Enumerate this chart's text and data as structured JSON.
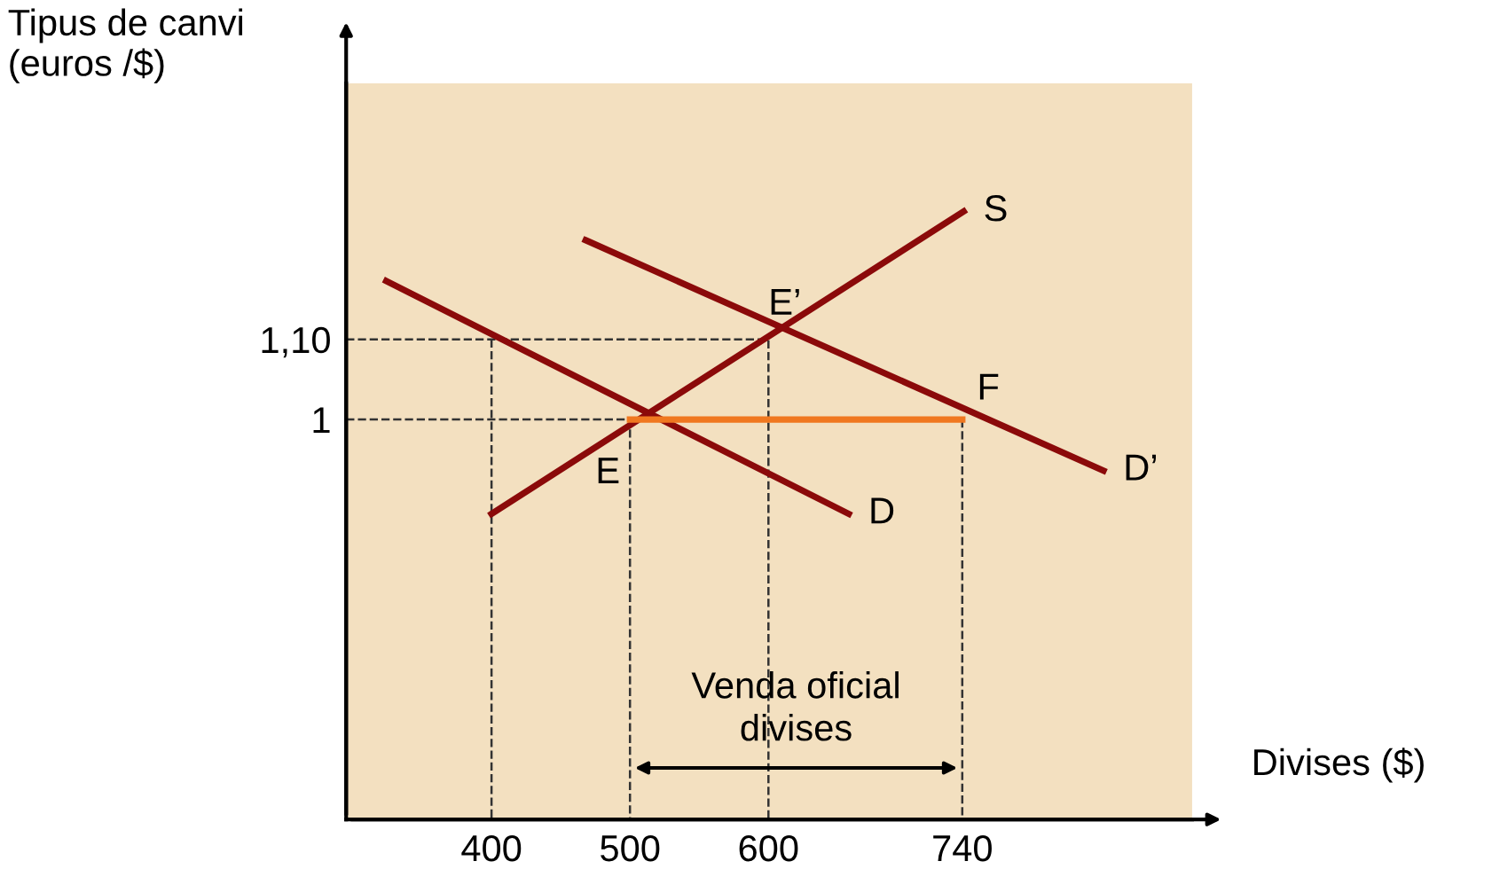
{
  "chart_data": {
    "type": "line",
    "xlabel": "Divises ($)",
    "ylabel": "Tipus de canvi\n(euros /$)",
    "xlim": [
      295,
      906
    ],
    "ylim": [
      0.5,
      1.42
    ],
    "xticks": [
      400,
      500,
      600,
      740
    ],
    "yticks": [
      1,
      {
        "value": 1.1,
        "label": "1,10"
      }
    ],
    "grid": false,
    "marker": "none",
    "series": [
      {
        "name": "S",
        "color": "#8b0a0a",
        "x": [
          400,
          741
        ],
        "values": [
          0.882,
          1.26
        ]
      },
      {
        "name": "D",
        "color": "#8b0a0a",
        "x": [
          324,
          658
        ],
        "values": [
          1.173,
          0.882
        ]
      },
      {
        "name": "D’",
        "color": "#8b0a0a",
        "x": [
          468,
          842
        ],
        "values": [
          1.224,
          0.936
        ]
      },
      {
        "color": "#f07820",
        "x": [
          500,
          740
        ],
        "values": [
          1,
          1
        ]
      },
      {
        "color": "#333333",
        "line_style": "dashed",
        "x": [
          295,
          600,
          600,
          600
        ],
        "values": [
          1.1,
          1.1,
          1.1,
          0.5
        ]
      },
      {
        "color": "#333333",
        "line_style": "dashed",
        "x": [
          295,
          500,
          500
        ],
        "values": [
          1,
          1,
          0.5
        ]
      },
      {
        "color": "#333333",
        "line_style": "dashed",
        "x": [
          400,
          400
        ],
        "values": [
          1.1,
          0.5
        ]
      },
      {
        "color": "#333333",
        "line_style": "dashed",
        "x": [
          740,
          740
        ],
        "values": [
          1,
          0.5
        ]
      }
    ],
    "annotations": [
      {
        "text": "E",
        "x": 500,
        "y": 1
      },
      {
        "text": "E’",
        "x": 600,
        "y": 1.1
      },
      {
        "text": "F",
        "x": 740,
        "y": 1
      },
      "Venda oficial\ndivises"
    ]
  }
}
